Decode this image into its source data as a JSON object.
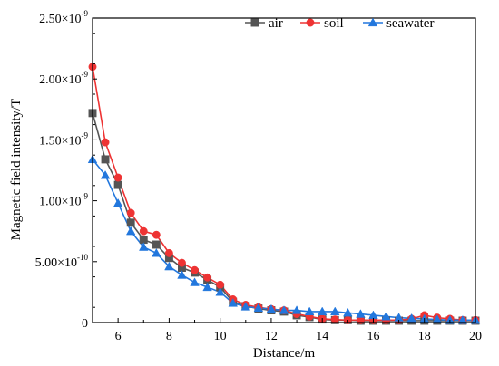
{
  "chart_data": {
    "type": "line",
    "xlabel": "Distance/m",
    "ylabel": "Magnetic field intensity/T",
    "xlim": [
      5,
      20
    ],
    "ylim": [
      0,
      2.5e-09
    ],
    "x_ticks": [
      6,
      8,
      10,
      12,
      14,
      16,
      18,
      20
    ],
    "x_tick_labels": [
      "6",
      "8",
      "10",
      "12",
      "14",
      "16",
      "18",
      "20"
    ],
    "y_ticks": [
      {
        "value": 0,
        "mantissa": "0",
        "exp": ""
      },
      {
        "value": 5e-10,
        "mantissa": "5.00×10",
        "exp": "-10"
      },
      {
        "value": 1e-09,
        "mantissa": "1.00×10",
        "exp": "-9"
      },
      {
        "value": 1.5e-09,
        "mantissa": "1.50×10",
        "exp": "-9"
      },
      {
        "value": 2e-09,
        "mantissa": "2.00×10",
        "exp": "-9"
      },
      {
        "value": 2.5e-09,
        "mantissa": "2.50×10",
        "exp": "-9"
      }
    ],
    "legend_position": "top-right",
    "grid": false,
    "series": [
      {
        "name": "air",
        "color": "#555555",
        "marker": "square",
        "x": [
          5.0,
          5.5,
          6.0,
          6.5,
          7.0,
          7.5,
          8.0,
          8.5,
          9.0,
          9.5,
          10.0,
          10.5,
          11.0,
          11.5,
          12.0,
          12.5,
          13.0,
          13.5,
          14.0,
          14.5,
          15.0,
          15.5,
          16.0,
          16.5,
          17.0,
          17.5,
          18.0,
          18.5,
          19.0,
          19.5,
          20.0
        ],
        "y": [
          1.72e-09,
          1.34e-09,
          1.13e-09,
          8.2e-10,
          6.8e-10,
          6.4e-10,
          5.3e-10,
          4.5e-10,
          4.1e-10,
          3.5e-10,
          2.9e-10,
          1.7e-10,
          1.35e-10,
          1.15e-10,
          1e-10,
          9e-11,
          6e-11,
          4.5e-11,
          2.5e-11,
          2e-11,
          2e-11,
          1.5e-11,
          1.5e-11,
          1.5e-11,
          1.5e-11,
          1.5e-11,
          1.5e-11,
          1.5e-11,
          1.5e-11,
          1.5e-11,
          1.5e-11
        ]
      },
      {
        "name": "soil",
        "color": "#ee3333",
        "marker": "circle",
        "x": [
          5.0,
          5.5,
          6.0,
          6.5,
          7.0,
          7.5,
          8.0,
          8.5,
          9.0,
          9.5,
          10.0,
          10.5,
          11.0,
          11.5,
          12.0,
          12.5,
          13.0,
          13.5,
          14.0,
          14.5,
          15.0,
          15.5,
          16.0,
          16.5,
          17.0,
          17.5,
          18.0,
          18.5,
          19.0,
          19.5,
          20.0
        ],
        "y": [
          2.1e-09,
          1.48e-09,
          1.19e-09,
          9e-10,
          7.5e-10,
          7.2e-10,
          5.7e-10,
          4.9e-10,
          4.3e-10,
          3.7e-10,
          3.1e-10,
          1.9e-10,
          1.45e-10,
          1.25e-10,
          1.1e-10,
          1e-10,
          7e-11,
          5e-11,
          3e-11,
          2.5e-11,
          2e-11,
          2e-11,
          2e-11,
          2e-11,
          2e-11,
          3e-11,
          6e-11,
          4e-11,
          3e-11,
          2e-11,
          2e-11
        ]
      },
      {
        "name": "seawater",
        "color": "#2277dd",
        "marker": "triangle",
        "x": [
          5.0,
          5.5,
          6.0,
          6.5,
          7.0,
          7.5,
          8.0,
          8.5,
          9.0,
          9.5,
          10.0,
          10.5,
          11.0,
          11.5,
          12.0,
          12.5,
          13.0,
          13.5,
          14.0,
          14.5,
          15.0,
          15.5,
          16.0,
          16.5,
          17.0,
          17.5,
          18.0,
          18.5,
          19.0,
          19.5,
          20.0
        ],
        "y": [
          1.34e-09,
          1.21e-09,
          9.8e-10,
          7.5e-10,
          6.2e-10,
          5.7e-10,
          4.6e-10,
          3.9e-10,
          3.3e-10,
          2.9e-10,
          2.5e-10,
          1.6e-10,
          1.3e-10,
          1.2e-10,
          1.1e-10,
          1e-10,
          1e-10,
          9e-11,
          9e-11,
          9e-11,
          8e-11,
          7e-11,
          6e-11,
          5e-11,
          4e-11,
          3.5e-11,
          3e-11,
          2.5e-11,
          2e-11,
          2e-11,
          2e-11
        ]
      }
    ]
  }
}
